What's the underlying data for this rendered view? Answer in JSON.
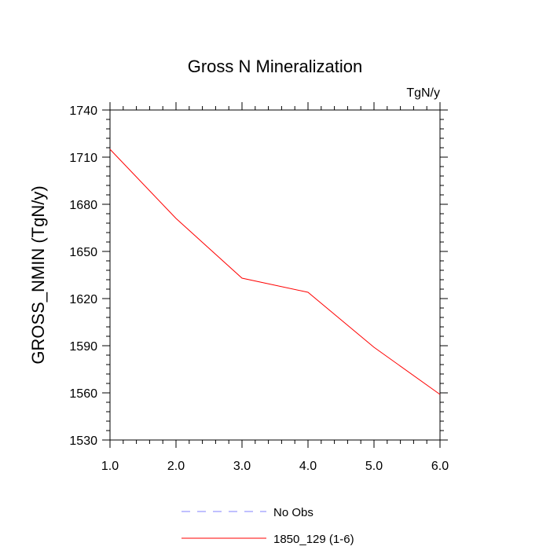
{
  "chart_data": {
    "type": "line",
    "title": "Gross N Mineralization",
    "units_label": "TgN/y",
    "xlabel": "",
    "ylabel": "GROSS_NMIN  (TgN/y)",
    "xlim": [
      1.0,
      6.0
    ],
    "ylim": [
      1530,
      1740
    ],
    "x_ticks": [
      1.0,
      2.0,
      3.0,
      4.0,
      5.0,
      6.0
    ],
    "x_tick_labels": [
      "1.0",
      "2.0",
      "3.0",
      "4.0",
      "5.0",
      "6.0"
    ],
    "y_ticks": [
      1530,
      1560,
      1590,
      1620,
      1650,
      1680,
      1710,
      1740
    ],
    "y_tick_labels": [
      "1530",
      "1560",
      "1590",
      "1620",
      "1650",
      "1680",
      "1710",
      "1740"
    ],
    "grid": false,
    "legend_position": "bottom",
    "series": [
      {
        "name": "1850_129 (1-6)",
        "color": "#ff0000",
        "style": "solid",
        "x": [
          1.0,
          2.0,
          3.0,
          4.0,
          5.0,
          6.0
        ],
        "values": [
          1715,
          1671,
          1633,
          1624,
          1589,
          1559
        ]
      }
    ],
    "legend": [
      {
        "label": "No Obs",
        "color": "#8080ff",
        "style": "dashed"
      },
      {
        "label": "1850_129 (1-6)",
        "color": "#ff0000",
        "style": "solid"
      }
    ]
  }
}
